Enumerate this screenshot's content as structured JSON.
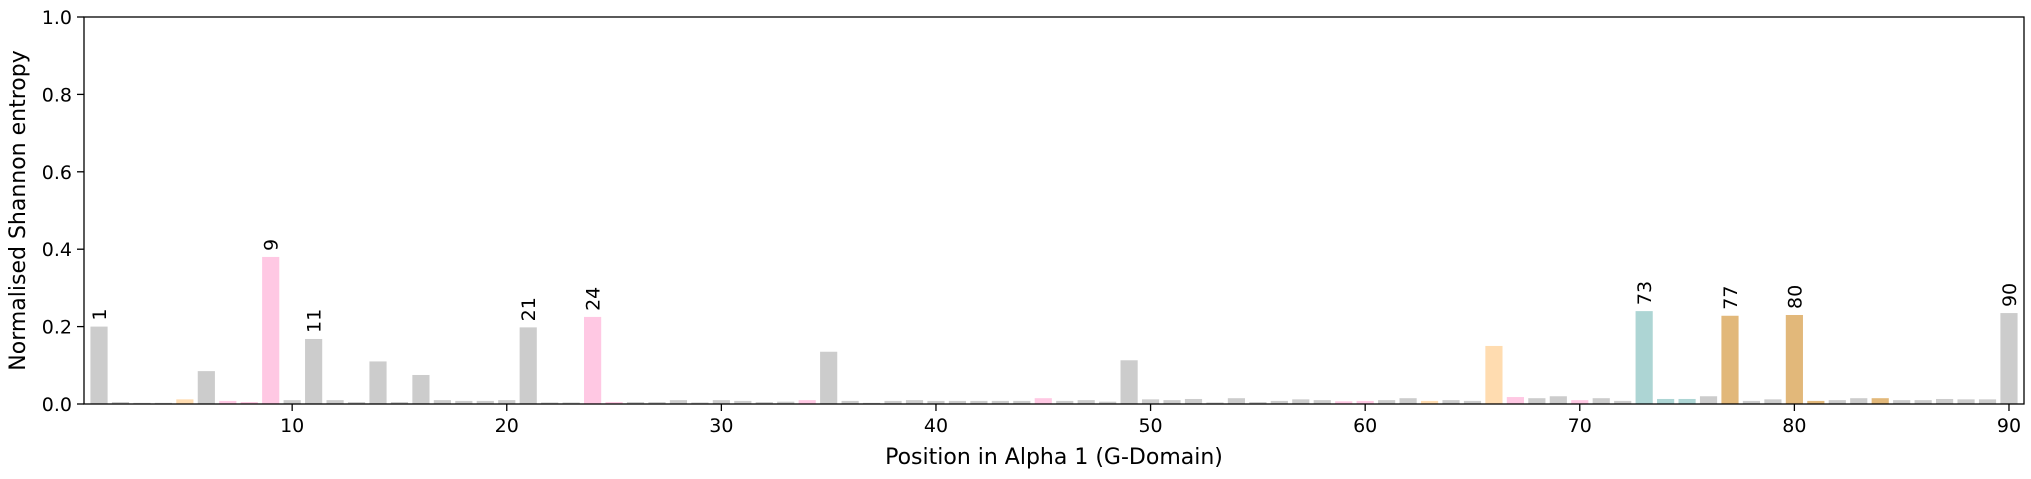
{
  "chart_data": {
    "type": "bar",
    "xlabel": "Position in Alpha 1 (G-Domain)",
    "ylabel": "Normalised Shannon entropy",
    "ylim": [
      0,
      1.0
    ],
    "xlim": [
      0.3,
      90.7
    ],
    "grid": false,
    "legend": "none",
    "yticks": [
      0.0,
      0.2,
      0.4,
      0.6,
      0.8,
      1.0
    ],
    "ytick_labels": [
      "0.0",
      "0.2",
      "0.4",
      "0.6",
      "0.8",
      "1.0"
    ],
    "xticks": [
      10,
      20,
      30,
      40,
      50,
      60,
      70,
      80,
      90
    ],
    "xtick_labels": [
      "10",
      "20",
      "30",
      "40",
      "50",
      "60",
      "70",
      "80",
      "90"
    ],
    "colors": {
      "grey": "#cccccc",
      "pink": "#ffc8e3",
      "peach": "#ffdcb0",
      "teal": "#add5d4",
      "orange": "#e2b87a"
    },
    "positions": [
      1,
      2,
      3,
      4,
      5,
      6,
      7,
      8,
      9,
      10,
      11,
      12,
      13,
      14,
      15,
      16,
      17,
      18,
      19,
      20,
      21,
      22,
      23,
      24,
      25,
      26,
      27,
      28,
      29,
      30,
      31,
      32,
      33,
      34,
      35,
      36,
      37,
      38,
      39,
      40,
      41,
      42,
      43,
      44,
      45,
      46,
      47,
      48,
      49,
      50,
      51,
      52,
      53,
      54,
      55,
      56,
      57,
      58,
      59,
      60,
      61,
      62,
      63,
      64,
      65,
      66,
      67,
      68,
      69,
      70,
      71,
      72,
      73,
      74,
      75,
      76,
      77,
      78,
      79,
      80,
      81,
      82,
      83,
      84,
      85,
      86,
      87,
      88,
      89,
      90
    ],
    "values": [
      0.2,
      0.005,
      0.003,
      0.003,
      0.012,
      0.085,
      0.008,
      0.005,
      0.38,
      0.01,
      0.168,
      0.01,
      0.005,
      0.11,
      0.005,
      0.075,
      0.01,
      0.008,
      0.008,
      0.01,
      0.198,
      0.004,
      0.004,
      0.225,
      0.005,
      0.005,
      0.005,
      0.01,
      0.004,
      0.01,
      0.008,
      0.005,
      0.006,
      0.01,
      0.135,
      0.008,
      0.003,
      0.008,
      0.01,
      0.008,
      0.008,
      0.008,
      0.008,
      0.008,
      0.015,
      0.008,
      0.01,
      0.006,
      0.113,
      0.012,
      0.01,
      0.013,
      0.004,
      0.015,
      0.005,
      0.008,
      0.012,
      0.01,
      0.007,
      0.008,
      0.01,
      0.015,
      0.008,
      0.01,
      0.008,
      0.15,
      0.018,
      0.015,
      0.02,
      0.01,
      0.015,
      0.008,
      0.24,
      0.013,
      0.013,
      0.02,
      0.228,
      0.008,
      0.012,
      0.23,
      0.008,
      0.01,
      0.015,
      0.015,
      0.01,
      0.01,
      0.013,
      0.012,
      0.012,
      0.235
    ],
    "bar_colors": [
      "grey",
      "grey",
      "grey",
      "grey",
      "peach",
      "grey",
      "pink",
      "pink",
      "pink",
      "grey",
      "grey",
      "grey",
      "grey",
      "grey",
      "grey",
      "grey",
      "grey",
      "grey",
      "grey",
      "grey",
      "grey",
      "grey",
      "grey",
      "pink",
      "pink",
      "grey",
      "grey",
      "grey",
      "grey",
      "grey",
      "grey",
      "grey",
      "grey",
      "pink",
      "grey",
      "grey",
      "grey",
      "grey",
      "grey",
      "grey",
      "grey",
      "grey",
      "grey",
      "grey",
      "pink",
      "grey",
      "grey",
      "grey",
      "grey",
      "grey",
      "grey",
      "grey",
      "grey",
      "grey",
      "grey",
      "grey",
      "grey",
      "grey",
      "pink",
      "pink",
      "grey",
      "grey",
      "peach",
      "grey",
      "grey",
      "peach",
      "pink",
      "grey",
      "grey",
      "pink",
      "grey",
      "grey",
      "teal",
      "teal",
      "teal",
      "grey",
      "orange",
      "grey",
      "grey",
      "orange",
      "orange",
      "grey",
      "grey",
      "orange",
      "grey",
      "grey",
      "grey",
      "grey",
      "grey",
      "grey"
    ],
    "annotations": [
      {
        "x": 1,
        "text": "1"
      },
      {
        "x": 9,
        "text": "9"
      },
      {
        "x": 11,
        "text": "11"
      },
      {
        "x": 21,
        "text": "21"
      },
      {
        "x": 24,
        "text": "24"
      },
      {
        "x": 73,
        "text": "73"
      },
      {
        "x": 77,
        "text": "77"
      },
      {
        "x": 80,
        "text": "80"
      },
      {
        "x": 90,
        "text": "90"
      }
    ]
  }
}
